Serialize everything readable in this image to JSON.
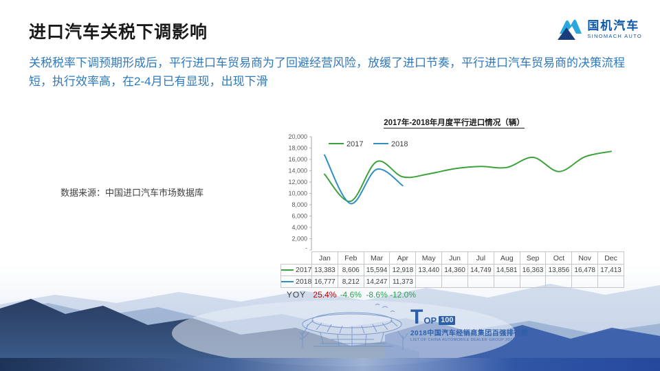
{
  "slide": {
    "title": "进口汽车关税下调影响",
    "subtitle": "关税税率下调预期形成后，平行进口车贸易商为了回避经营风险，放缓了进口节奏，平行进口汽车贸易商的决策流程短，执行效率高，在2-4月已有显现，出现下滑",
    "data_source": "数据来源：中国进口汽车市场数据库"
  },
  "logo": {
    "name_cn": "国机汽车",
    "name_en": "SINOMACH AUTO",
    "text_color": "#0C57A7",
    "icon_light_blue": "#2BA7DF",
    "icon_dark_blue": "#1B3D7C"
  },
  "watermark": {
    "t": "T",
    "op": "OP",
    "num": "100",
    "line1": "2018中国汽车经销商集团百强排行榜",
    "line2": "LIST OF CHINA AUTOMOBILE DEALER GROUP 2018"
  },
  "chart_data": {
    "type": "line",
    "title": "2017年-2018年月度平行进口情况（辆）",
    "categories": [
      "Jan",
      "Feb",
      "Mar",
      "Apr",
      "May",
      "Jun",
      "Jul",
      "Aug",
      "Sep",
      "Oct",
      "Nov",
      "Dec"
    ],
    "series": [
      {
        "name": "2017",
        "color": "#3CA33C",
        "values": [
          13383,
          8606,
          15594,
          12918,
          13440,
          14360,
          14749,
          14581,
          16363,
          13856,
          16478,
          17413
        ]
      },
      {
        "name": "2018",
        "color": "#2E8FC0",
        "values": [
          16777,
          8212,
          14247,
          11373
        ]
      }
    ],
    "yoy": {
      "label": "YOY",
      "values": [
        "25.4%",
        "-4.6%",
        "-8.6%",
        "-12.0%"
      ],
      "colors": [
        "#C00000",
        "#2EA052",
        "#2EA052",
        "#2EA052"
      ]
    },
    "ylim": [
      0,
      20000
    ],
    "ytick_step": 2000,
    "ytick_labels": [
      "-",
      "2,000",
      "4,000",
      "6,000",
      "8,000",
      "10,000",
      "12,000",
      "14,000",
      "16,000",
      "18,000",
      "20,000"
    ],
    "legend_position": "top-left",
    "line_smoothing": true,
    "grid": false,
    "axis_color": "#a6a6a6",
    "tick_label_color": "#595959"
  }
}
